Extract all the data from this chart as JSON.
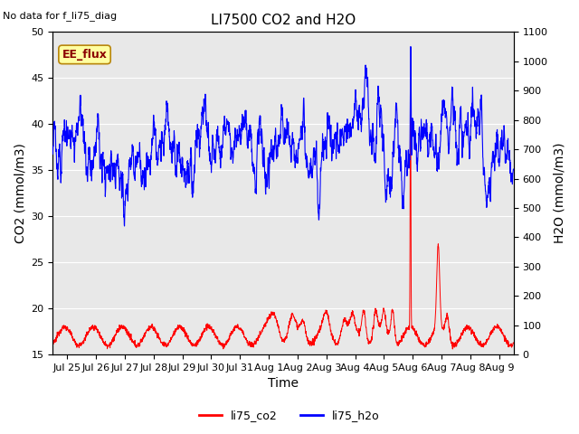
{
  "title": "LI7500 CO2 and H2O",
  "no_data_text": "No data for f_li75_diag",
  "ee_flux_label": "EE_flux",
  "xlabel": "Time",
  "ylabel_left": "CO2 (mmol/m3)",
  "ylabel_right": "H2O (mmol/m3)",
  "ylim_left": [
    15,
    50
  ],
  "ylim_right": [
    0,
    1100
  ],
  "yticks_left": [
    15,
    20,
    25,
    30,
    35,
    40,
    45,
    50
  ],
  "yticks_right": [
    0,
    100,
    200,
    300,
    400,
    500,
    600,
    700,
    800,
    900,
    1000,
    1100
  ],
  "bg_color": "#e8e8e8",
  "fig_color": "#ffffff",
  "line_co2_color": "#ff0000",
  "line_h2o_color": "#0000ff",
  "legend_items": [
    "li75_co2",
    "li75_h2o"
  ],
  "legend_colors": [
    "#ff0000",
    "#0000ff"
  ],
  "title_fontsize": 11,
  "axis_label_fontsize": 10,
  "tick_fontsize": 8,
  "x_tick_labels": [
    "Jul 25",
    "Jul 26",
    "Jul 27",
    "Jul 28",
    "Jul 29",
    "Jul 30",
    "Jul 31",
    "Aug 1",
    "Aug 2",
    "Aug 3",
    "Aug 4",
    "Aug 5",
    "Aug 6",
    "Aug 7",
    "Aug 8",
    "Aug 9"
  ],
  "x_tick_positions": [
    0.5,
    1.5,
    2.5,
    3.5,
    4.5,
    5.5,
    6.5,
    7.5,
    8.5,
    9.5,
    10.5,
    11.5,
    12.5,
    13.5,
    14.5,
    15.5
  ]
}
